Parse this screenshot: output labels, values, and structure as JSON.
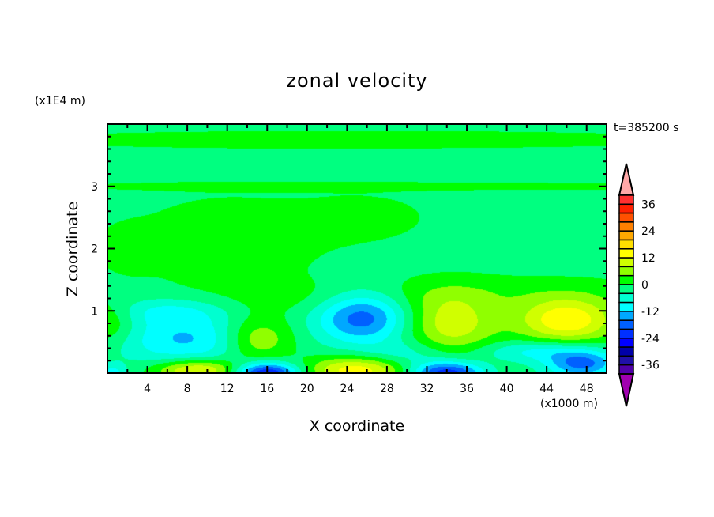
{
  "chart_data": {
    "type": "heatmap",
    "subtype": "filled-contour",
    "title": "zonal velocity",
    "xlabel": "X coordinate",
    "ylabel": "Z coordinate",
    "x_unit_label": "(x1000 m)",
    "y_unit_label": "(x1E4 m)",
    "annotation": "t=385200 s",
    "xlim": [
      0,
      50
    ],
    "ylim": [
      0,
      4
    ],
    "x_ticks": [
      4,
      8,
      12,
      16,
      20,
      24,
      28,
      32,
      36,
      40,
      44,
      48
    ],
    "y_ticks": [
      1,
      2,
      3
    ],
    "colorbar": {
      "levels_min": -40,
      "levels_max": 40,
      "interval": 4,
      "tick_labels": [
        "36",
        "24",
        "12",
        "0",
        "-12",
        "-24",
        "-36"
      ],
      "tick_values": [
        36,
        24,
        12,
        0,
        -12,
        -24,
        -36
      ],
      "over_color": "#ffa8a8",
      "under_color": "#a000b0",
      "colors_top_to_bottom": [
        "#ff3030",
        "#ff2000",
        "#ff5000",
        "#ff8000",
        "#ffa800",
        "#ffe000",
        "#ffff00",
        "#d0ff00",
        "#90ff00",
        "#00ff00",
        "#00ff80",
        "#00ffd0",
        "#00ffff",
        "#00a8ff",
        "#0060ff",
        "#0030ff",
        "#0000ff",
        "#0000a8",
        "#2010a8",
        "#5000a8"
      ]
    },
    "field_background": -1.5,
    "field_features": [
      {
        "x": 25,
        "z": 3.75,
        "amp": 3,
        "sx": 30,
        "sz": 0.12
      },
      {
        "x": 30,
        "z": 3.0,
        "amp": 3,
        "sx": 30,
        "sz": 0.05
      },
      {
        "x": 12,
        "z": 2.1,
        "amp": 3.5,
        "sx": 7,
        "sz": 0.55
      },
      {
        "x": 26,
        "z": 2.5,
        "amp": 2.5,
        "sx": 5,
        "sz": 0.3
      },
      {
        "x": 2,
        "z": 2.0,
        "amp": 3,
        "sx": 2,
        "sz": 0.25
      },
      {
        "x": 40,
        "z": 1.3,
        "amp": 3,
        "sx": 12,
        "sz": 0.2
      },
      {
        "x": 20,
        "z": 1.2,
        "amp": 2.5,
        "sx": 8,
        "sz": 0.2
      },
      {
        "x": 25.5,
        "z": 0.9,
        "amp": -17,
        "sx": 3.2,
        "sz": 0.3
      },
      {
        "x": 8,
        "z": 0.55,
        "amp": -11,
        "sx": 5,
        "sz": 0.3
      },
      {
        "x": 6,
        "z": 1.0,
        "amp": -6,
        "sx": 4,
        "sz": 0.15
      },
      {
        "x": 34.5,
        "z": 0.8,
        "amp": 12,
        "sx": 3.2,
        "sz": 0.35
      },
      {
        "x": 46,
        "z": 0.85,
        "amp": 17,
        "sx": 3.5,
        "sz": 0.25
      },
      {
        "x": 15,
        "z": 0.55,
        "amp": 11,
        "sx": 2.5,
        "sz": 0.25
      },
      {
        "x": 0,
        "z": 0.8,
        "amp": 7,
        "sx": 2,
        "sz": 0.25
      },
      {
        "x": 9,
        "z": 0.05,
        "amp": 16,
        "sx": 3,
        "sz": 0.12
      },
      {
        "x": 25,
        "z": 0.05,
        "amp": 16,
        "sx": 3.5,
        "sz": 0.15
      },
      {
        "x": 16,
        "z": 0.0,
        "amp": -24,
        "sx": 2.2,
        "sz": 0.12
      },
      {
        "x": 34,
        "z": 0.0,
        "amp": -22,
        "sx": 2.5,
        "sz": 0.13
      },
      {
        "x": 47.5,
        "z": 0.15,
        "amp": -16,
        "sx": 2.5,
        "sz": 0.15
      },
      {
        "x": 43,
        "z": 0.35,
        "amp": -8,
        "sx": 4,
        "sz": 0.12
      },
      {
        "x": 30,
        "z": 0.3,
        "amp": -5,
        "sx": 3,
        "sz": 0.15
      },
      {
        "x": 0.5,
        "z": 0.0,
        "amp": -8,
        "sx": 1,
        "sz": 0.1
      }
    ]
  }
}
